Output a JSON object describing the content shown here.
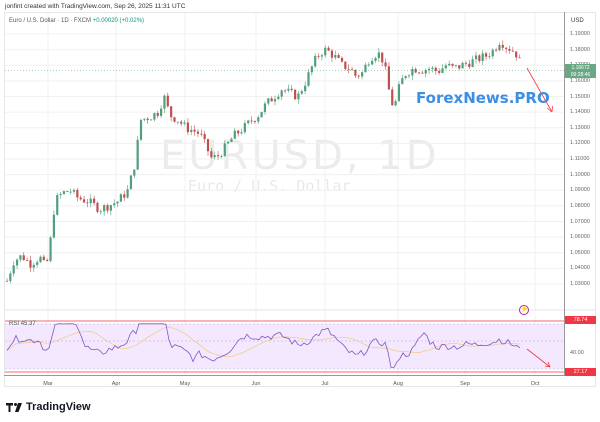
{
  "header": {
    "credit": "jonfint created with TradingView.com, Sep 26, 2025 11:31 UTC",
    "symbol_desc": "Euro / U.S. Dollar · 1D · FXCM",
    "change": "+0.00020 (+0.02%)"
  },
  "watermark": {
    "symbol": "EURUSD, 1D",
    "name": "Euro / U.S. Dollar"
  },
  "brand_overlay": "ForexNews.PRO",
  "price_axis": {
    "currency": "USD",
    "ticks": [
      "1.19000",
      "1.18000",
      "1.17000",
      "1.16000",
      "1.15000",
      "1.14000",
      "1.13000",
      "1.12000",
      "1.11000",
      "1.10000",
      "1.09000",
      "1.08000",
      "1.07000",
      "1.06000",
      "1.05000",
      "1.04000",
      "1.03000"
    ],
    "last_price": "1.16672",
    "countdown": "09:28:46"
  },
  "time_axis": {
    "months": [
      "Mar",
      "Apr",
      "May",
      "Jun",
      "Jul",
      "Aug",
      "Sep",
      "Oct"
    ]
  },
  "rsi": {
    "label": "RSI",
    "value": "45.37",
    "upper_tag": "78.74",
    "lower_tag": "27.17",
    "mid_tick": "40.00"
  },
  "footer": {
    "logo_text": "TradingView"
  },
  "colors": {
    "up": "#4f9e7c",
    "down": "#c0504d",
    "rsi_line": "#7e57c2",
    "rsi_ma": "#f5c77e",
    "rsi_band": "#f3e8fd",
    "rsi_bound": "#f23645",
    "arrow": "#f23645",
    "brand": "#3d8fe6"
  },
  "chart_data": {
    "type": "candlestick",
    "title": "EURUSD, 1D",
    "subtitle": "Euro / U.S. Dollar · 1D · FXCM",
    "xlabel": "",
    "ylabel": "USD",
    "ylim": [
      1.025,
      1.195
    ],
    "grid": true,
    "x_ticks": [
      "Mar",
      "Apr",
      "May",
      "Jun",
      "Jul",
      "Aug",
      "Sep",
      "Oct"
    ],
    "last_close": 1.16672,
    "approx_monthly_path": [
      {
        "period": "late Feb",
        "close": 1.04
      },
      {
        "period": "early Mar",
        "close": 1.083
      },
      {
        "period": "mid Mar",
        "close": 1.09
      },
      {
        "period": "late Mar",
        "close": 1.08
      },
      {
        "period": "mid Apr",
        "close": 1.138
      },
      {
        "period": "late Apr",
        "close": 1.135
      },
      {
        "period": "mid May",
        "close": 1.115
      },
      {
        "period": "early Jun",
        "close": 1.14
      },
      {
        "period": "mid Jun",
        "close": 1.155
      },
      {
        "period": "early Jul",
        "close": 1.18
      },
      {
        "period": "mid Jul",
        "close": 1.165
      },
      {
        "period": "early Aug",
        "close": 1.145
      },
      {
        "period": "mid Aug",
        "close": 1.17
      },
      {
        "period": "late Aug",
        "close": 1.165
      },
      {
        "period": "mid Sep",
        "close": 1.185
      },
      {
        "period": "late Sep",
        "close": 1.167
      }
    ],
    "rsi": {
      "period_label": "RSI",
      "last": 45.37,
      "upper": 78.74,
      "lower": 27.17,
      "mid": 40.0
    },
    "annotations": [
      "Red down-arrow projection after last candle",
      "Red down-arrow projection in RSI pane",
      "ForexNews.PRO text overlay"
    ]
  }
}
